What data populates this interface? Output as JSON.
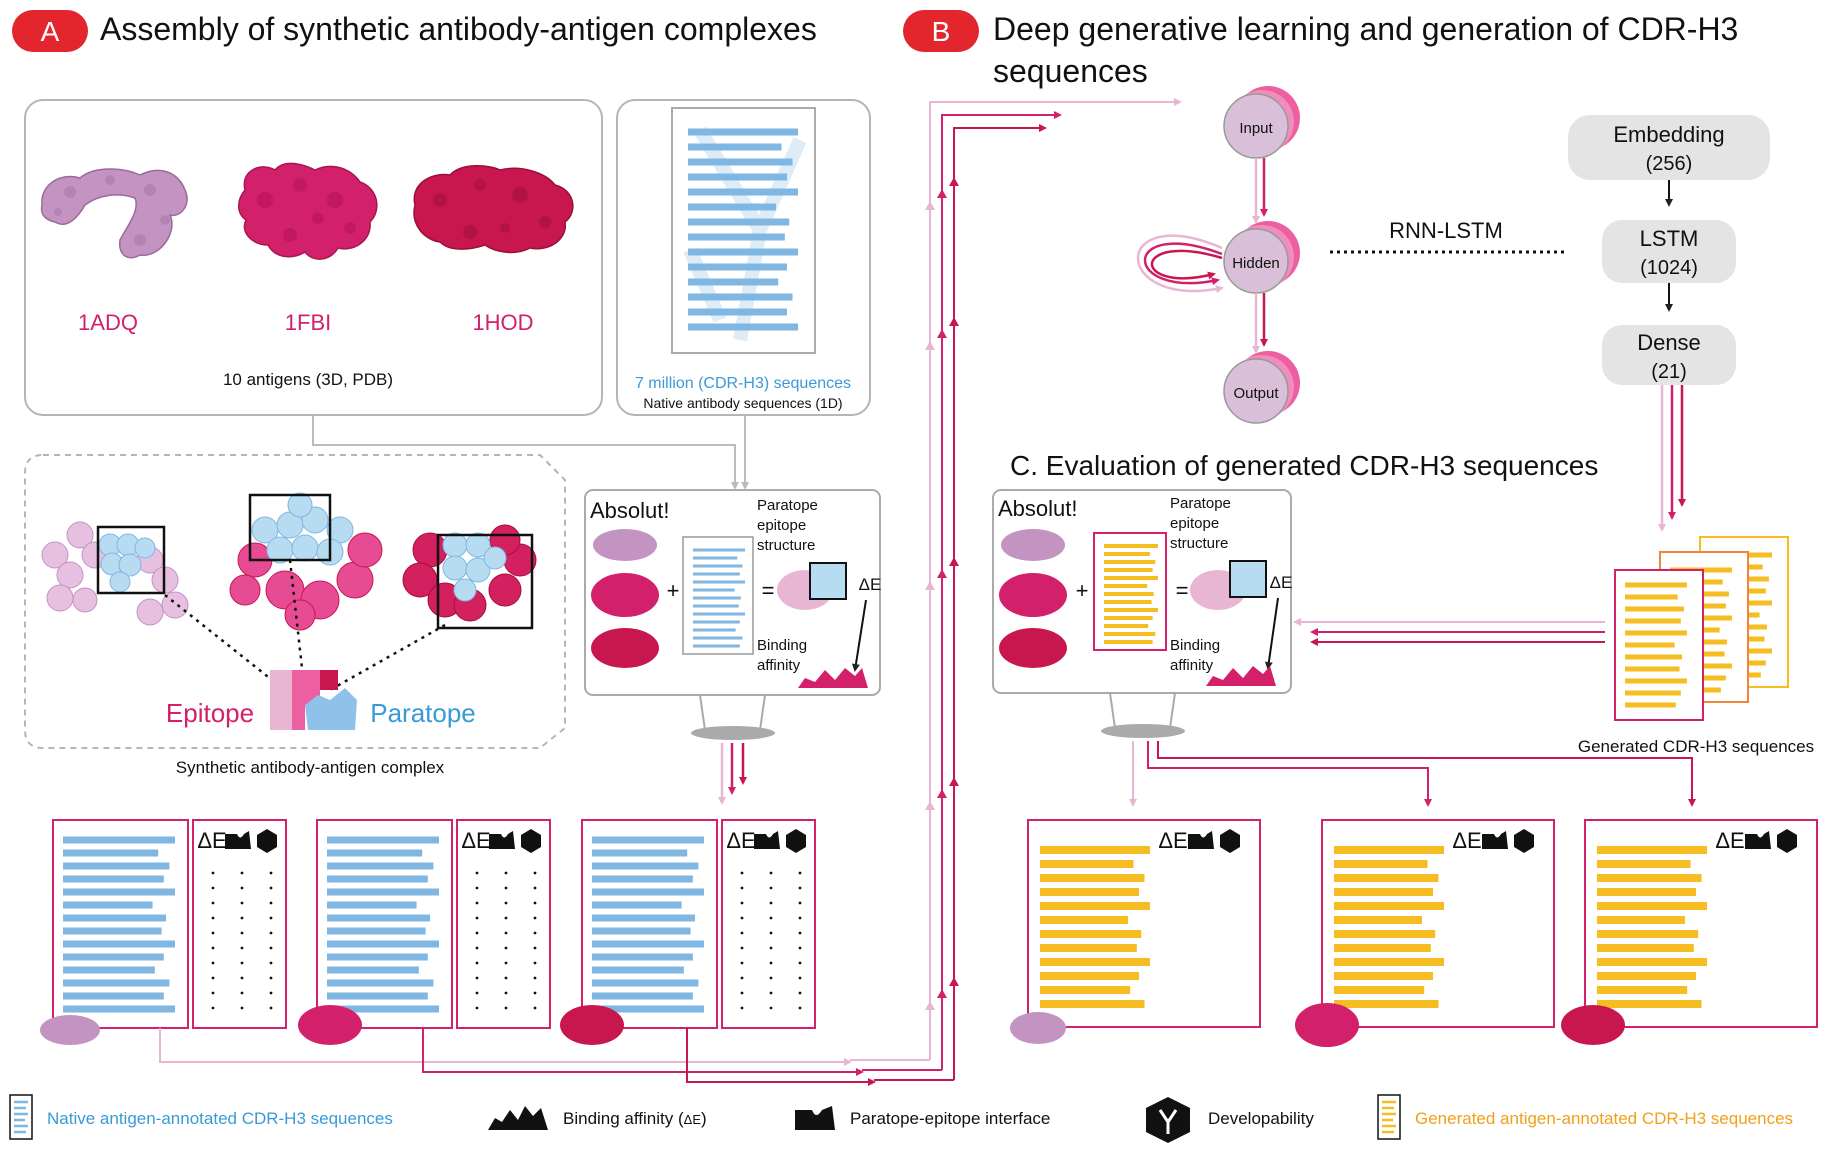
{
  "panel_a": {
    "badge": "A",
    "title": "Assembly of synthetic antibody-antigen complexes",
    "antigens": [
      "1ADQ",
      "1FBI",
      "1HOD"
    ],
    "antigen_caption": "10 antigens (3D, PDB)",
    "native_count": "7 million (CDR-H3) sequences",
    "native_caption": "Native antibody sequences (1D)",
    "epitope_label": "Epitope",
    "paratope_label": "Paratope",
    "complex_caption": "Synthetic antibody-antigen complex",
    "absolut": {
      "name": "Absolut!",
      "structure_label": [
        "Paratope",
        "epitope",
        "structure"
      ],
      "plus": "+",
      "equals": "=",
      "delta_e": "ΔE",
      "affinity_label": [
        "Binding",
        "affinity"
      ]
    },
    "table_delta_e": "ΔE"
  },
  "panel_b": {
    "badge": "B",
    "title_lines": [
      "Deep generative learning and generation of CDR-H3",
      "sequences"
    ],
    "nodes": {
      "input": "Input",
      "hidden": "Hidden",
      "output": "Output"
    },
    "rnn_label": "RNN-LSTM",
    "layers": [
      {
        "name": "Embedding",
        "size": "(256)"
      },
      {
        "name": "LSTM",
        "size": "(1024)"
      },
      {
        "name": "Dense",
        "size": "(21)"
      }
    ],
    "generated_caption": "Generated CDR-H3 sequences"
  },
  "panel_c": {
    "title": "C. Evaluation of generated CDR-H3 sequences",
    "absolut": {
      "name": "Absolut!",
      "structure_label": [
        "Paratope",
        "epitope",
        "structure"
      ],
      "plus": "+",
      "equals": "=",
      "delta_e": "ΔE",
      "affinity_label": [
        "Binding",
        "affinity"
      ]
    },
    "table_delta_e": "ΔE"
  },
  "legend": {
    "native": "Native antigen-annotated CDR-H3 sequences",
    "binding": "Binding affinity (",
    "binding_delta": "ΔE",
    "binding_close": ")",
    "interface": "Paratope-epitope interface",
    "developability": "Developability",
    "generated": "Generated antigen-annotated CDR-H3 sequences"
  },
  "colors": {
    "red": "#e3262e",
    "magenta": "#d3206b",
    "crimson": "#c8174f",
    "pink_light": "#e8b6d2",
    "lilac": "#c393c2",
    "blue": "#7fb6e2",
    "blue_text": "#3a9ad6",
    "yellow": "#f5bd21",
    "orange_text": "#f0a019",
    "gray": "#cccccc"
  }
}
